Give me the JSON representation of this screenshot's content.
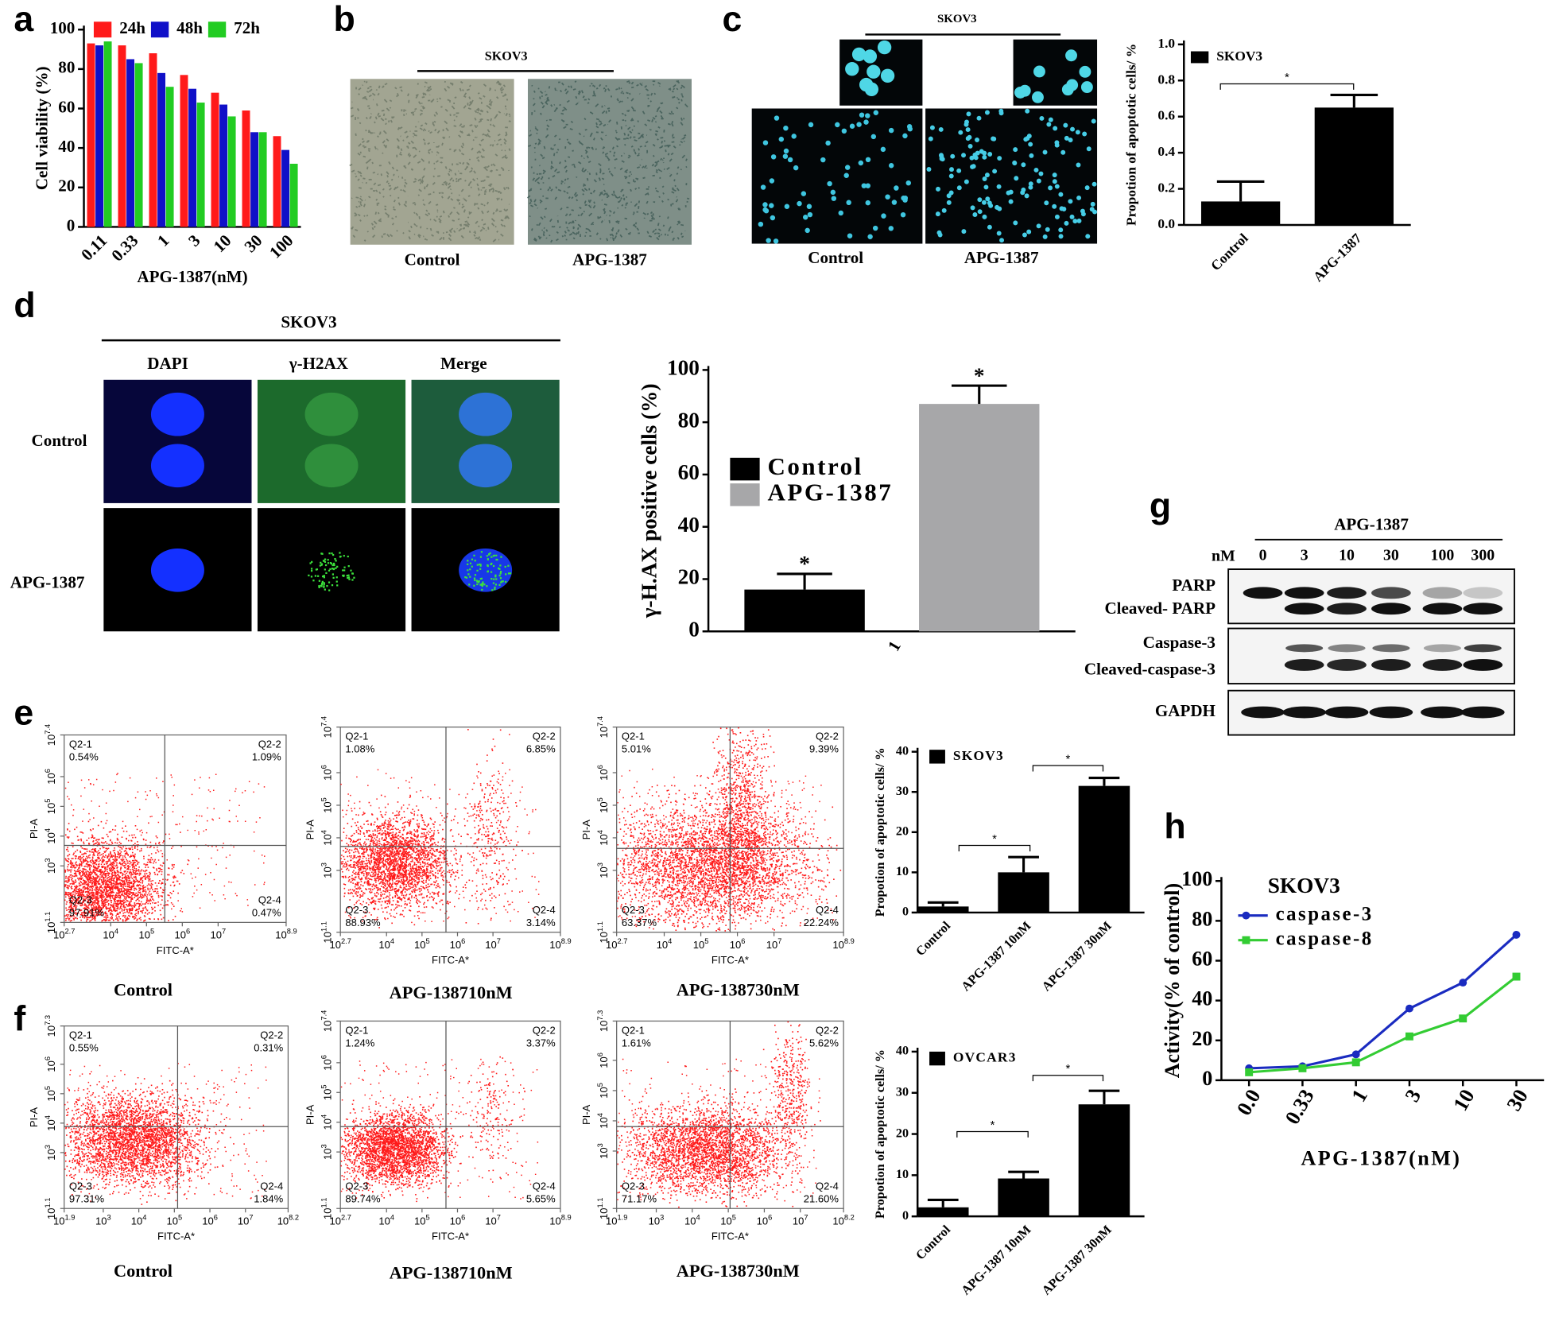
{
  "figure": {
    "panel_labels": [
      "a",
      "b",
      "c",
      "d",
      "e",
      "f",
      "g",
      "h"
    ],
    "b": {
      "title": "SKOV3",
      "captions": [
        "Control",
        "APG-1387"
      ]
    },
    "c": {
      "title": "SKOV3",
      "captions": [
        "Control",
        "APG-1387"
      ]
    },
    "d": {
      "title": "SKOV3",
      "columns": [
        "DAPI",
        "γ-H2AX",
        "Merge"
      ],
      "rows": [
        "Control",
        "APG-1387"
      ]
    },
    "g": {
      "title": "APG-1387",
      "unit": "nM",
      "lanes": [
        "0",
        "3",
        "10",
        "30",
        "100",
        "300"
      ],
      "labels": [
        "PARP",
        "Cleaved- PARP",
        "Caspase-3",
        "Cleaved-caspase-3",
        "GAPDH"
      ]
    },
    "flow": {
      "tick_base": "10",
      "x_label": "FITC-A*",
      "y_label": "PI-A",
      "quadrants": [
        "Q2-1",
        "Q2-2",
        "Q2-3",
        "Q2-4"
      ],
      "plots": [
        {
          "caption": "Control",
          "percents": [
            "0.54%",
            "1.09%",
            "97.91%",
            "0.47%"
          ],
          "xticks": [
            2.7,
            4,
            5,
            6,
            7,
            8.9
          ],
          "yticks": [
            1.1,
            3,
            4,
            5,
            6,
            7.4
          ]
        },
        {
          "caption": "APG-138710nM",
          "percents": [
            "1.08%",
            "6.85%",
            "88.93%",
            "3.14%"
          ],
          "xticks": [
            2.7,
            4,
            5,
            6,
            7,
            8.9
          ],
          "yticks": [
            1.1,
            3,
            4,
            5,
            6,
            7.4
          ]
        },
        {
          "caption": "APG-138730nM",
          "percents": [
            "5.01%",
            "9.39%",
            "63.37%",
            "22.24%"
          ],
          "xticks": [
            2.7,
            4,
            5,
            6,
            7,
            8.9
          ],
          "yticks": [
            1.1,
            3,
            4,
            5,
            6,
            7.4
          ]
        },
        {
          "caption": "Control",
          "percents": [
            "0.55%",
            "0.31%",
            "97.31%",
            "1.84%"
          ],
          "xticks": [
            1.9,
            3,
            4,
            5,
            6,
            7,
            8.2
          ],
          "yticks": [
            1.1,
            3,
            4,
            5,
            6,
            7.3
          ]
        },
        {
          "caption": "APG-138710nM",
          "percents": [
            "1.24%",
            "3.37%",
            "89.74%",
            "5.65%"
          ],
          "xticks": [
            2.7,
            4,
            5,
            6,
            7,
            8.9
          ],
          "yticks": [
            1.1,
            3,
            4,
            5,
            6,
            7.4
          ]
        },
        {
          "caption": "APG-138730nM",
          "percents": [
            "1.61%",
            "5.62%",
            "71.17%",
            "21.60%"
          ],
          "xticks": [
            1.9,
            3,
            4,
            5,
            6,
            7,
            8.2
          ],
          "yticks": [
            1.1,
            3,
            4,
            5,
            6,
            7.3
          ]
        }
      ]
    }
  },
  "chart_data": [
    {
      "type": "bar",
      "xlabel": "APG-1387(nM)",
      "ylabel": "Cell viability (%)",
      "categories": [
        "0.11",
        "0.33",
        "1",
        "3",
        "10",
        "30",
        "100"
      ],
      "series": [
        {
          "name": "24h",
          "color": "#ff1a1a",
          "values": [
            93,
            92,
            88,
            77,
            68,
            59,
            46
          ]
        },
        {
          "name": "48h",
          "color": "#1010c8",
          "values": [
            92,
            85,
            78,
            70,
            62,
            48,
            39
          ]
        },
        {
          "name": "72h",
          "color": "#22cc22",
          "values": [
            94,
            83,
            71,
            63,
            56,
            48,
            32
          ]
        }
      ],
      "ylim": [
        0,
        100
      ],
      "yticks": [
        0,
        20,
        40,
        60,
        80,
        100
      ]
    },
    {
      "type": "bar",
      "ylabel": "Propotion of apoptotic cells/ %",
      "categories": [
        "Control",
        "APG-1387"
      ],
      "series": [
        {
          "name": "SKOV3",
          "color": "#000000",
          "values": [
            0.13,
            0.65
          ],
          "errors": [
            0.11,
            0.07
          ]
        }
      ],
      "ylim": [
        0,
        1
      ],
      "yticks": [
        {
          "value": 0,
          "label": "0.0"
        },
        0.2,
        0.4,
        0.6,
        0.8,
        {
          "value": 1,
          "label": "1.0"
        }
      ],
      "significance": "*"
    },
    {
      "type": "bar",
      "ylabel": "γ-H.AX positive cells (%)",
      "categories": [
        "1"
      ],
      "series": [
        {
          "name": "Control",
          "color": "#000000",
          "values": [
            16
          ],
          "errors": [
            6
          ]
        },
        {
          "name": "APG-1387",
          "color": "#a7a7a9",
          "values": [
            87
          ],
          "errors": [
            7
          ]
        }
      ],
      "ylim": [
        0,
        100
      ],
      "yticks": [
        0,
        20,
        40,
        60,
        80,
        100
      ],
      "significance": "*"
    },
    {
      "type": "bar",
      "ylabel": "Propotion of apoptotic cells/ %",
      "categories": [
        "Control",
        "APG-1387 10nM",
        "APG-1387 30nM"
      ],
      "series": [
        {
          "name": "SKOV3",
          "color": "#000000",
          "values": [
            1.5,
            10,
            31.5
          ],
          "errors": [
            1,
            3.8,
            2
          ]
        }
      ],
      "ylim": [
        0,
        40
      ],
      "yticks": [
        0,
        10,
        20,
        30,
        40
      ],
      "significance": "*"
    },
    {
      "type": "bar",
      "ylabel": "Propotion of apoptotic cells/ %",
      "categories": [
        "Control",
        "APG-1387 10nM",
        "APG-1387 30nM"
      ],
      "series": [
        {
          "name": "OVCAR3",
          "color": "#000000",
          "values": [
            2.2,
            9.2,
            27.2
          ],
          "errors": [
            1.8,
            1.6,
            3.3
          ]
        }
      ],
      "ylim": [
        0,
        40
      ],
      "yticks": [
        0,
        10,
        20,
        30,
        40
      ],
      "significance": "*"
    },
    {
      "type": "line",
      "xlabel": "APG-1387(nM)",
      "ylabel": "Activity(% of control)",
      "legend_title": "SKOV3",
      "categories": [
        "0.0",
        "0.33",
        "1",
        "3",
        "10",
        "30"
      ],
      "series": [
        {
          "name": "caspase-3",
          "color": "#1a2bc0",
          "marker": "circle",
          "values": [
            6,
            7,
            13,
            36,
            49,
            73
          ]
        },
        {
          "name": "caspase-8",
          "color": "#33cc33",
          "marker": "square",
          "values": [
            4,
            6,
            9,
            22,
            31,
            52
          ]
        }
      ],
      "ylim": [
        0,
        100
      ],
      "yticks": [
        0,
        20,
        40,
        60,
        80,
        100
      ]
    }
  ]
}
